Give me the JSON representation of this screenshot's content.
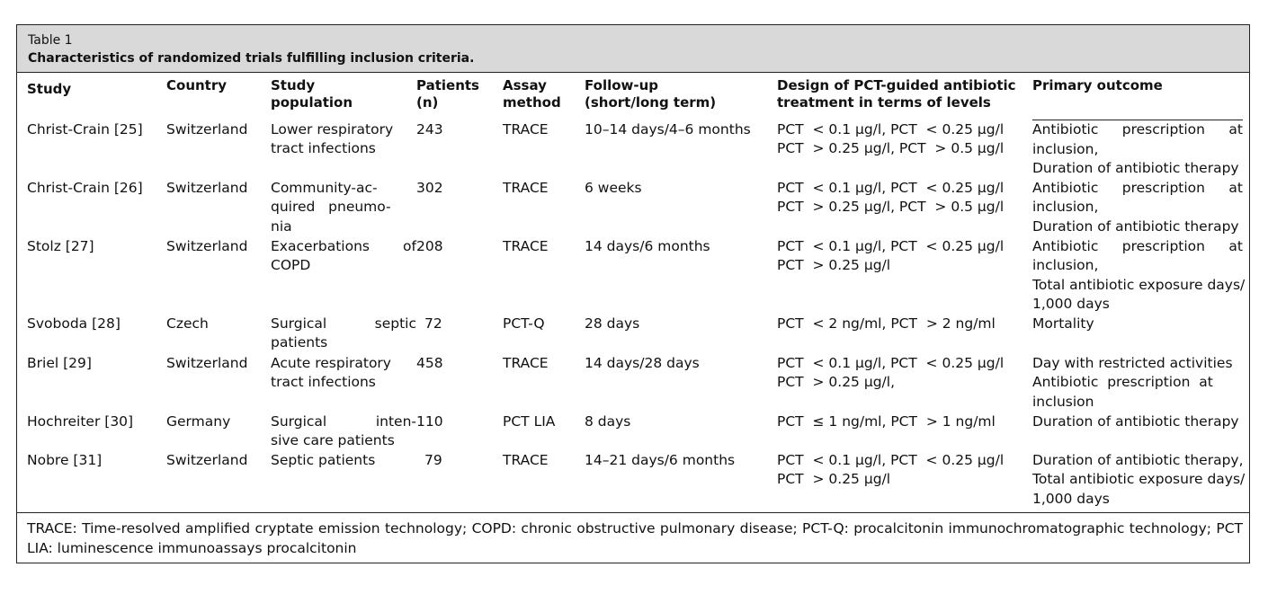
{
  "caption": {
    "label": "Table 1",
    "title": "Characteristics of randomized trials fulfilling inclusion criteria."
  },
  "headers": {
    "study": "Study",
    "country": "Country",
    "population": [
      "Study",
      "population"
    ],
    "patients": [
      "Patients",
      "(n)"
    ],
    "assay": [
      "Assay",
      "method"
    ],
    "followup": [
      "Follow-up",
      "(short/long term)"
    ],
    "design": [
      "Design of PCT-guided antibiotic",
      "treatment in terms of levels"
    ],
    "outcome": "Primary outcome"
  },
  "rows": [
    {
      "study": "Christ-Crain [25]",
      "country": "Switzerland",
      "population": [
        "Lower respiratory",
        "tract infections"
      ],
      "patients": "243",
      "assay": "TRACE",
      "followup": "10–14 days/4–6 months",
      "design": [
        "PCT  < 0.1 µg/l, PCT  < 0.25 µg/l",
        "PCT  > 0.25 µg/l, PCT  > 0.5 µg/l"
      ],
      "outcome": [
        "Antibiotic  prescription  at",
        "inclusion,",
        "Duration of antibiotic therapy"
      ]
    },
    {
      "study": "Christ-Crain [26]",
      "country": "Switzerland",
      "population": [
        "Community-ac-",
        "quired   pneumo-",
        "nia"
      ],
      "patients": "302",
      "assay": "TRACE",
      "followup": "6 weeks",
      "design": [
        "PCT  < 0.1 µg/l, PCT  < 0.25 µg/l",
        "PCT  > 0.25 µg/l, PCT  > 0.5 µg/l"
      ],
      "outcome": [
        "Antibiotic  prescription  at",
        "inclusion,",
        "Duration of antibiotic therapy"
      ]
    },
    {
      "study": "Stolz [27]",
      "country": "Switzerland",
      "population": [
        "Exacerbations  of",
        "COPD"
      ],
      "patients": "208",
      "assay": "TRACE",
      "followup": "14 days/6 months",
      "design": [
        "PCT  < 0.1 µg/l, PCT  < 0.25 µg/l",
        "PCT  > 0.25 µg/l"
      ],
      "outcome": [
        "Antibiotic  prescription  at",
        "inclusion,",
        "Total antibiotic exposure days/",
        "1,000 days"
      ]
    },
    {
      "study": "Svoboda [28]",
      "country": "Czech",
      "population": [
        "Surgical   septic",
        "patients"
      ],
      "patients": "72",
      "assay": "PCT-Q",
      "followup": "28 days",
      "design": [
        "PCT  < 2 ng/ml, PCT  > 2 ng/ml"
      ],
      "outcome": [
        "Mortality"
      ]
    },
    {
      "study": "Briel [29]",
      "country": "Switzerland",
      "population": [
        "Acute respiratory",
        "tract infections"
      ],
      "patients": "458",
      "assay": "TRACE",
      "followup": "14 days/28 days",
      "design": [
        "PCT  < 0.1 µg/l, PCT  < 0.25 µg/l",
        "PCT  > 0.25 µg/l,"
      ],
      "outcome": [
        "Day with restricted activities",
        "Antibiotic  prescription  at",
        "inclusion"
      ]
    },
    {
      "study": "Hochreiter [30]",
      "country": "Germany",
      "population": [
        "Surgical   inten-",
        "sive care patients"
      ],
      "patients": "110",
      "assay": "PCT LIA",
      "followup": "8 days",
      "design": [
        "PCT  ≤ 1 ng/ml, PCT  > 1 ng/ml"
      ],
      "outcome": [
        "Duration of antibiotic therapy"
      ]
    },
    {
      "study": "Nobre [31]",
      "country": "Switzerland",
      "population": [
        "Septic patients"
      ],
      "patients": "79",
      "assay": "TRACE",
      "followup": "14–21 days/6 months",
      "design": [
        "PCT  < 0.1 µg/l, PCT  < 0.25 µg/l",
        "PCT  > 0.25 µg/l"
      ],
      "outcome": [
        "Duration of antibiotic therapy,",
        "Total antibiotic exposure days/",
        "1,000 days"
      ]
    }
  ],
  "footnote": "TRACE: Time-resolved amplified cryptate emission technology; COPD: chronic obstructive pulmonary disease; PCT-Q: procalcitonin immunochromatographic technology; PCT LIA: luminescence immunoassays procalcitonin"
}
